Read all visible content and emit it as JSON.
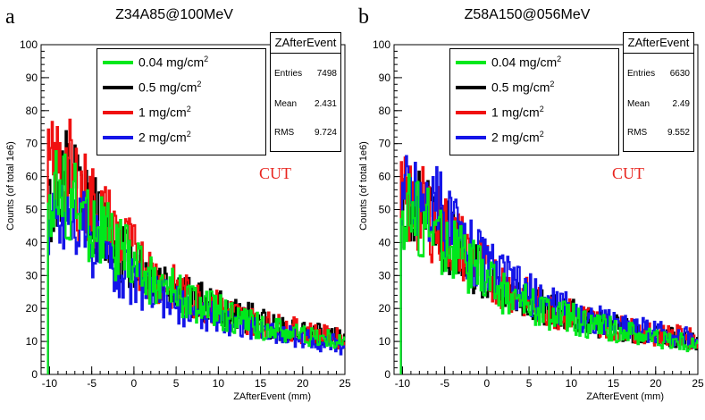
{
  "colors": {
    "green": "#00e81c",
    "black": "#000000",
    "red": "#f01010",
    "blue": "#1515e8",
    "cut": "#e8251f"
  },
  "chart_data": [
    {
      "type": "line",
      "panel_letter": "a",
      "title": "Z34A85@100MeV",
      "xlabel": "ZAfterEvent (mm)",
      "ylabel": "Counts (of total 1e6)",
      "xlim": [
        -11,
        25
      ],
      "ylim": [
        0,
        100
      ],
      "x_ticks": [
        "-10",
        "-5",
        "0",
        "5",
        "10",
        "15",
        "20",
        "25"
      ],
      "y_ticks": [
        "0",
        "10",
        "20",
        "30",
        "40",
        "50",
        "60",
        "70",
        "80",
        "90",
        "100"
      ],
      "annotation": "CUT",
      "legend": [
        {
          "label": "0.04 mg/cm",
          "sup": "2",
          "color": "#00e81c"
        },
        {
          "label": "0.5 mg/cm",
          "sup": "2",
          "color": "#000000"
        },
        {
          "label": "1 mg/cm",
          "sup": "2",
          "color": "#f01010"
        },
        {
          "label": "2 mg/cm",
          "sup": "2",
          "color": "#1515e8"
        }
      ],
      "stats": {
        "title": "ZAfterEvent",
        "entries": "7498",
        "mean": "2.431",
        "rms": "9.724"
      },
      "series": [
        {
          "name": "0.5 mg/cm2",
          "color": "#000000",
          "x": [
            -10,
            -8,
            -6,
            -4,
            -2,
            0,
            2,
            4,
            6,
            8,
            10,
            12,
            14,
            16,
            18,
            20,
            22,
            24,
            25
          ],
          "y": [
            52,
            58,
            52,
            45,
            40,
            34,
            30,
            27,
            24,
            22,
            20,
            18,
            17,
            15,
            14,
            13,
            12,
            11,
            10
          ]
        },
        {
          "name": "1 mg/cm2",
          "color": "#f01010",
          "x": [
            -10,
            -8,
            -6,
            -4,
            -2,
            0,
            2,
            4,
            6,
            8,
            10,
            12,
            14,
            16,
            18,
            20,
            22,
            24,
            25
          ],
          "y": [
            60,
            62,
            54,
            48,
            42,
            36,
            31,
            27,
            24,
            22,
            20,
            18,
            16,
            15,
            14,
            13,
            12,
            11,
            10
          ]
        },
        {
          "name": "2 mg/cm2",
          "color": "#1515e8",
          "x": [
            -10,
            -8,
            -6,
            -4,
            -2,
            0,
            2,
            4,
            6,
            8,
            10,
            12,
            14,
            16,
            18,
            20,
            22,
            24,
            25
          ],
          "y": [
            45,
            50,
            44,
            38,
            33,
            28,
            25,
            22,
            20,
            18,
            17,
            16,
            14,
            13,
            12,
            11,
            10,
            9,
            8
          ]
        },
        {
          "name": "0.04 mg/cm2",
          "color": "#00e81c",
          "x": [
            -10,
            -8,
            -6,
            -4,
            -2,
            0,
            2,
            4,
            6,
            8,
            10,
            12,
            14,
            16,
            18,
            20,
            22,
            24,
            25
          ],
          "y": [
            55,
            54,
            48,
            44,
            38,
            34,
            29,
            26,
            23,
            21,
            19,
            17,
            15,
            14,
            13,
            12,
            11,
            10,
            9
          ]
        }
      ]
    },
    {
      "type": "line",
      "panel_letter": "b",
      "title": "Z58A150@056MeV",
      "xlabel": "ZAfterEvent (mm)",
      "ylabel": "Counts (of total 1e6)",
      "xlim": [
        -11,
        25
      ],
      "ylim": [
        0,
        100
      ],
      "x_ticks": [
        "-10",
        "-5",
        "0",
        "5",
        "10",
        "15",
        "20",
        "25"
      ],
      "y_ticks": [
        "0",
        "10",
        "20",
        "30",
        "40",
        "50",
        "60",
        "70",
        "80",
        "90",
        "100"
      ],
      "annotation": "CUT",
      "legend": [
        {
          "label": "0.04 mg/cm",
          "sup": "2",
          "color": "#00e81c"
        },
        {
          "label": "0.5 mg/cm",
          "sup": "2",
          "color": "#000000"
        },
        {
          "label": "1 mg/cm",
          "sup": "2",
          "color": "#f01010"
        },
        {
          "label": "2 mg/cm",
          "sup": "2",
          "color": "#1515e8"
        }
      ],
      "stats": {
        "title": "ZAfterEvent",
        "entries": "6630",
        "mean": "2.49",
        "rms": "9.552"
      },
      "series": [
        {
          "name": "0.5 mg/cm2",
          "color": "#000000",
          "x": [
            -10,
            -8,
            -6,
            -4,
            -2,
            0,
            2,
            4,
            6,
            8,
            10,
            12,
            14,
            16,
            18,
            20,
            22,
            24,
            25
          ],
          "y": [
            50,
            48,
            45,
            40,
            35,
            30,
            26,
            23,
            21,
            19,
            18,
            16,
            15,
            14,
            13,
            12,
            11,
            10,
            9
          ]
        },
        {
          "name": "1 mg/cm2",
          "color": "#f01010",
          "x": [
            -10,
            -8,
            -6,
            -4,
            -2,
            0,
            2,
            4,
            6,
            8,
            10,
            12,
            14,
            16,
            18,
            20,
            22,
            24,
            25
          ],
          "y": [
            52,
            50,
            46,
            41,
            36,
            31,
            27,
            24,
            21,
            19,
            18,
            17,
            15,
            14,
            13,
            12,
            12,
            11,
            10
          ]
        },
        {
          "name": "2 mg/cm2",
          "color": "#1515e8",
          "x": [
            -10,
            -8,
            -6,
            -4,
            -2,
            0,
            2,
            4,
            6,
            8,
            10,
            12,
            14,
            16,
            18,
            20,
            22,
            24,
            25
          ],
          "y": [
            56,
            54,
            50,
            44,
            38,
            33,
            29,
            25,
            23,
            21,
            19,
            17,
            16,
            15,
            14,
            13,
            12,
            11,
            10
          ]
        },
        {
          "name": "0.04 mg/cm2",
          "color": "#00e81c",
          "x": [
            -10,
            -8,
            -6,
            -4,
            -2,
            0,
            2,
            4,
            6,
            8,
            10,
            12,
            14,
            16,
            18,
            20,
            22,
            24,
            25
          ],
          "y": [
            50,
            47,
            43,
            38,
            33,
            29,
            25,
            22,
            20,
            18,
            17,
            15,
            14,
            13,
            12,
            11,
            10,
            9,
            8
          ]
        }
      ]
    }
  ]
}
